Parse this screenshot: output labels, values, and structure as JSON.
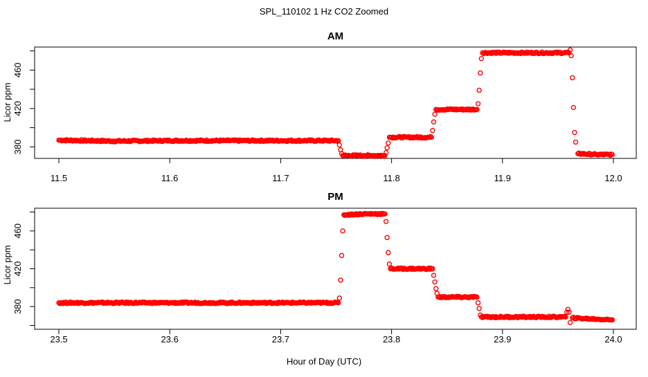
{
  "figure": {
    "title": "SPL_110102  1 Hz CO2 Zoomed",
    "xlabel": "Hour of Day (UTC)",
    "marker_color": "#ff0000"
  },
  "chart_data": [
    {
      "type": "scatter",
      "title": "AM",
      "ylabel": "Licor ppm",
      "xlim": [
        11.5,
        12.0
      ],
      "ylim": [
        368,
        484
      ],
      "x_ticks": [
        "11.5",
        "11.6",
        "11.7",
        "11.8",
        "11.9",
        "12.0"
      ],
      "y_ticks": [
        "380",
        "420",
        "460"
      ],
      "x_tick_values": [
        11.5,
        11.6,
        11.7,
        11.8,
        11.9,
        12.0
      ],
      "y_tick_values": [
        380,
        420,
        460
      ],
      "series": [
        {
          "values": [
            {
              "x": 11.5,
              "y": 387
            },
            {
              "x": 11.55,
              "y": 386
            },
            {
              "x": 11.6,
              "y": 386.5
            },
            {
              "x": 11.65,
              "y": 386.5
            },
            {
              "x": 11.7,
              "y": 386.5
            },
            {
              "x": 11.752,
              "y": 386.5
            },
            {
              "x": 11.753,
              "y": 382
            },
            {
              "x": 11.754,
              "y": 377
            },
            {
              "x": 11.755,
              "y": 373
            },
            {
              "x": 11.756,
              "y": 371
            },
            {
              "x": 11.775,
              "y": 371
            },
            {
              "x": 11.794,
              "y": 371
            },
            {
              "x": 11.795,
              "y": 374
            },
            {
              "x": 11.796,
              "y": 379
            },
            {
              "x": 11.797,
              "y": 384
            },
            {
              "x": 11.798,
              "y": 390
            },
            {
              "x": 11.815,
              "y": 390
            },
            {
              "x": 11.836,
              "y": 390
            },
            {
              "x": 11.837,
              "y": 397
            },
            {
              "x": 11.838,
              "y": 406
            },
            {
              "x": 11.839,
              "y": 414
            },
            {
              "x": 11.84,
              "y": 419
            },
            {
              "x": 11.86,
              "y": 419
            },
            {
              "x": 11.877,
              "y": 419
            },
            {
              "x": 11.878,
              "y": 425
            },
            {
              "x": 11.879,
              "y": 439
            },
            {
              "x": 11.88,
              "y": 457
            },
            {
              "x": 11.881,
              "y": 472
            },
            {
              "x": 11.882,
              "y": 478
            },
            {
              "x": 11.92,
              "y": 478
            },
            {
              "x": 11.96,
              "y": 478
            },
            {
              "x": 11.961,
              "y": 481
            },
            {
              "x": 11.962,
              "y": 475
            },
            {
              "x": 11.963,
              "y": 452
            },
            {
              "x": 11.964,
              "y": 421
            },
            {
              "x": 11.965,
              "y": 395
            },
            {
              "x": 11.966,
              "y": 385
            },
            {
              "x": 11.968,
              "y": 373
            },
            {
              "x": 11.985,
              "y": 372
            },
            {
              "x": 11.999,
              "y": 372
            }
          ]
        }
      ]
    },
    {
      "type": "scatter",
      "title": "PM",
      "ylabel": "Licor ppm",
      "xlim": [
        23.5,
        24.0
      ],
      "ylim": [
        356,
        484
      ],
      "x_ticks": [
        "23.5",
        "23.6",
        "23.7",
        "23.8",
        "23.9",
        "24.0"
      ],
      "y_ticks": [
        "380",
        "420",
        "460"
      ],
      "x_tick_values": [
        23.5,
        23.6,
        23.7,
        23.8,
        23.9,
        24.0
      ],
      "y_tick_values": [
        380,
        420,
        460
      ],
      "series": [
        {
          "values": [
            {
              "x": 23.5,
              "y": 384
            },
            {
              "x": 23.55,
              "y": 384
            },
            {
              "x": 23.6,
              "y": 384
            },
            {
              "x": 23.65,
              "y": 384
            },
            {
              "x": 23.7,
              "y": 384
            },
            {
              "x": 23.752,
              "y": 384
            },
            {
              "x": 23.753,
              "y": 389
            },
            {
              "x": 23.754,
              "y": 408
            },
            {
              "x": 23.755,
              "y": 434
            },
            {
              "x": 23.756,
              "y": 460
            },
            {
              "x": 23.757,
              "y": 477
            },
            {
              "x": 23.775,
              "y": 478
            },
            {
              "x": 23.794,
              "y": 478
            },
            {
              "x": 23.795,
              "y": 470
            },
            {
              "x": 23.796,
              "y": 453
            },
            {
              "x": 23.797,
              "y": 437
            },
            {
              "x": 23.798,
              "y": 425
            },
            {
              "x": 23.799,
              "y": 420
            },
            {
              "x": 23.82,
              "y": 420
            },
            {
              "x": 23.837,
              "y": 420
            },
            {
              "x": 23.838,
              "y": 413
            },
            {
              "x": 23.839,
              "y": 406
            },
            {
              "x": 23.84,
              "y": 399
            },
            {
              "x": 23.841,
              "y": 394
            },
            {
              "x": 23.842,
              "y": 390
            },
            {
              "x": 23.86,
              "y": 390
            },
            {
              "x": 23.877,
              "y": 390
            },
            {
              "x": 23.878,
              "y": 384
            },
            {
              "x": 23.879,
              "y": 378
            },
            {
              "x": 23.88,
              "y": 371
            },
            {
              "x": 23.881,
              "y": 369
            },
            {
              "x": 23.92,
              "y": 369
            },
            {
              "x": 23.957,
              "y": 369
            },
            {
              "x": 23.958,
              "y": 374
            },
            {
              "x": 23.959,
              "y": 377
            },
            {
              "x": 23.96,
              "y": 374
            },
            {
              "x": 23.961,
              "y": 363
            },
            {
              "x": 23.963,
              "y": 368
            },
            {
              "x": 23.98,
              "y": 367
            },
            {
              "x": 23.999,
              "y": 366
            }
          ]
        }
      ]
    }
  ]
}
